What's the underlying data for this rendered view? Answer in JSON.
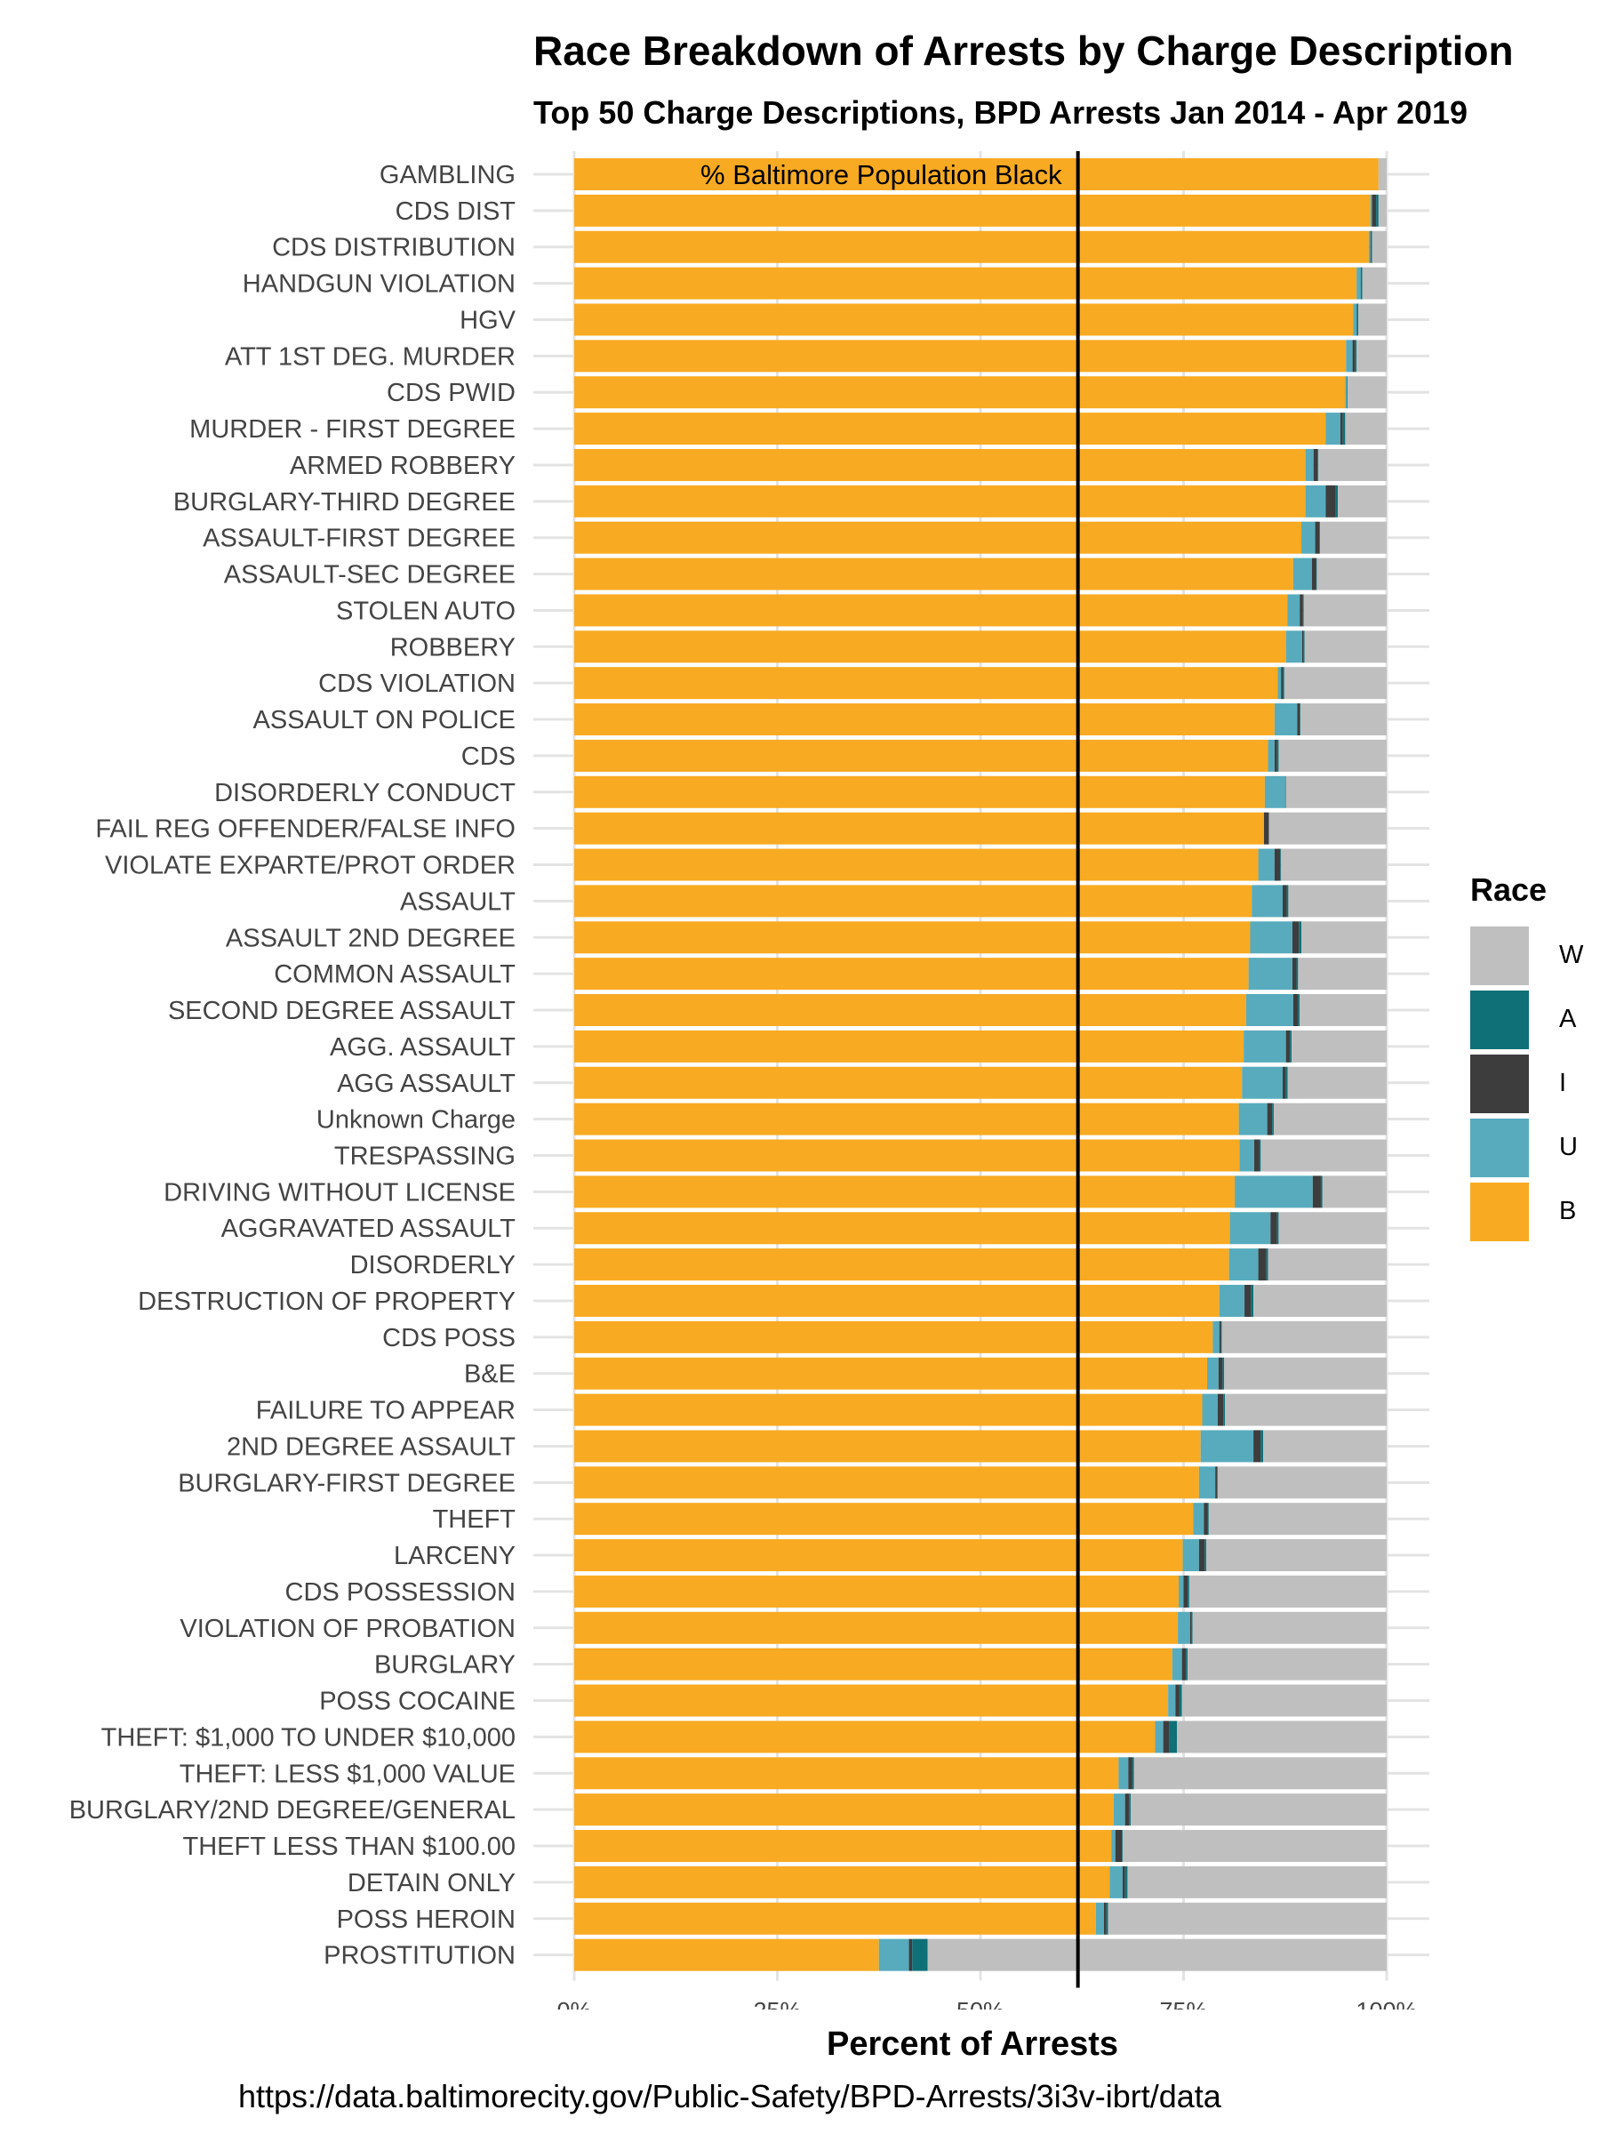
{
  "title": "Race Breakdown of Arrests by Charge Description",
  "subtitle": "Top 50 Charge Descriptions, BPD Arrests Jan 2014 - Apr 2019",
  "source": "https://data.baltimorecity.gov/Public-Safety/BPD-Arrests/3i3v-ibrt/data",
  "legend": {
    "title": "Race",
    "items": [
      {
        "key": "W",
        "label": "W",
        "color": "#bfbfbf"
      },
      {
        "key": "A",
        "label": "A",
        "color": "#0f7077"
      },
      {
        "key": "I",
        "label": "I",
        "color": "#3d3d3d"
      },
      {
        "key": "U",
        "label": "U",
        "color": "#57abbd"
      },
      {
        "key": "B",
        "label": "B",
        "color": "#f8aa22"
      }
    ]
  },
  "chart_data": {
    "type": "bar",
    "orientation": "horizontal",
    "stacked": true,
    "xlabel": "Percent of Arrests",
    "ylabel": "",
    "xlim": [
      0,
      100
    ],
    "xticks": [
      0,
      25,
      50,
      75,
      100
    ],
    "xtick_labels": [
      "0%",
      "25%",
      "50%",
      "75%",
      "100%"
    ],
    "grid": true,
    "legend_position": "right",
    "reference_line": {
      "x": 62,
      "label": "% Baltimore Population Black"
    },
    "stack_order": [
      "B",
      "U",
      "I",
      "A",
      "W"
    ],
    "categories": [
      "GAMBLING",
      "CDS DIST",
      "CDS DISTRIBUTION",
      "HANDGUN VIOLATION",
      "HGV",
      "ATT 1ST DEG. MURDER",
      "CDS PWID",
      "MURDER - FIRST DEGREE",
      "ARMED ROBBERY",
      "BURGLARY-THIRD DEGREE",
      "ASSAULT-FIRST DEGREE",
      "ASSAULT-SEC DEGREE",
      "STOLEN AUTO",
      "ROBBERY",
      "CDS VIOLATION",
      "ASSAULT ON POLICE",
      "CDS",
      "DISORDERLY CONDUCT",
      "FAIL REG OFFENDER/FALSE INFO",
      "VIOLATE EXPARTE/PROT ORDER",
      "ASSAULT",
      "ASSAULT 2ND DEGREE",
      "COMMON ASSAULT",
      "SECOND DEGREE ASSAULT",
      "AGG. ASSAULT",
      "AGG ASSAULT",
      "Unknown Charge",
      "TRESPASSING",
      "DRIVING WITHOUT LICENSE",
      "AGGRAVATED ASSAULT",
      "DISORDERLY",
      "DESTRUCTION OF PROPERTY",
      "CDS POSS",
      "B&E",
      "FAILURE TO APPEAR",
      "2ND DEGREE ASSAULT",
      "BURGLARY-FIRST DEGREE",
      "THEFT",
      "LARCENY",
      "CDS POSSESSION",
      "VIOLATION OF PROBATION",
      "BURGLARY",
      "POSS COCAINE",
      "THEFT: $1,000 TO UNDER $10,000",
      "THEFT: LESS $1,000 VALUE",
      "BURGLARY/2ND DEGREE/GENERAL",
      "THEFT LESS THAN $100.00",
      "DETAIN ONLY",
      "POSS HEROIN",
      "PROSTITUTION"
    ],
    "series": [
      {
        "name": "B",
        "values": [
          99.0,
          98.0,
          97.8,
          96.3,
          95.9,
          95.0,
          94.9,
          92.5,
          90.0,
          90.0,
          89.5,
          88.5,
          87.8,
          87.6,
          86.6,
          86.2,
          85.4,
          85.0,
          84.9,
          84.2,
          83.4,
          83.2,
          83.0,
          82.7,
          82.4,
          82.2,
          81.8,
          81.9,
          81.3,
          80.7,
          80.6,
          79.4,
          78.6,
          77.9,
          77.3,
          77.1,
          76.9,
          76.2,
          74.9,
          74.4,
          74.3,
          73.6,
          73.1,
          71.5,
          67.0,
          66.4,
          66.1,
          65.9,
          64.2,
          37.5
        ]
      },
      {
        "name": "U",
        "values": [
          0.0,
          0.2,
          0.2,
          0.5,
          0.4,
          0.8,
          0.2,
          1.8,
          1.0,
          2.5,
          1.7,
          2.3,
          1.5,
          2.0,
          0.4,
          2.8,
          0.8,
          2.5,
          0.0,
          2.0,
          3.8,
          5.2,
          5.4,
          5.8,
          5.2,
          5.0,
          3.5,
          1.8,
          9.6,
          5.0,
          3.6,
          3.1,
          0.8,
          1.4,
          1.9,
          6.5,
          2.0,
          1.3,
          2.0,
          0.6,
          1.5,
          1.2,
          0.9,
          1.0,
          1.2,
          1.4,
          0.5,
          1.6,
          1.0,
          3.7
        ]
      },
      {
        "name": "I",
        "values": [
          0.0,
          0.5,
          0.1,
          0.0,
          0.0,
          0.3,
          0.0,
          0.3,
          0.5,
          1.2,
          0.5,
          0.5,
          0.4,
          0.2,
          0.2,
          0.3,
          0.3,
          0.0,
          0.6,
          0.7,
          0.5,
          0.8,
          0.5,
          0.6,
          0.5,
          0.4,
          0.6,
          0.6,
          1.0,
          0.8,
          1.0,
          0.8,
          0.2,
          0.5,
          0.7,
          0.9,
          0.2,
          0.5,
          0.7,
          0.5,
          0.2,
          0.5,
          0.5,
          0.7,
          0.5,
          0.5,
          0.8,
          0.3,
          0.3,
          0.4
        ]
      },
      {
        "name": "A",
        "values": [
          0.0,
          0.3,
          0.1,
          0.2,
          0.2,
          0.2,
          0.1,
          0.3,
          0.1,
          0.3,
          0.1,
          0.1,
          0.1,
          0.1,
          0.2,
          0.1,
          0.2,
          0.1,
          0.0,
          0.1,
          0.2,
          0.3,
          0.2,
          0.2,
          0.2,
          0.2,
          0.2,
          0.2,
          0.2,
          0.2,
          0.2,
          0.3,
          0.1,
          0.2,
          0.2,
          0.3,
          0.1,
          0.1,
          0.2,
          0.2,
          0.1,
          0.2,
          0.3,
          1.0,
          0.2,
          0.2,
          0.1,
          0.3,
          0.2,
          1.9
        ]
      },
      {
        "name": "W",
        "values": [
          1.0,
          1.0,
          1.8,
          3.0,
          3.5,
          3.7,
          4.8,
          5.1,
          8.4,
          6.0,
          8.2,
          8.6,
          10.2,
          10.1,
          12.6,
          10.6,
          13.3,
          12.4,
          14.5,
          13.0,
          12.1,
          10.5,
          10.9,
          10.7,
          11.7,
          12.2,
          13.9,
          15.5,
          7.9,
          13.3,
          14.6,
          16.4,
          20.3,
          20.0,
          19.9,
          15.2,
          20.8,
          21.9,
          22.2,
          24.3,
          23.9,
          24.5,
          25.2,
          25.8,
          31.1,
          31.5,
          32.5,
          31.9,
          34.3,
          56.5
        ]
      }
    ]
  }
}
